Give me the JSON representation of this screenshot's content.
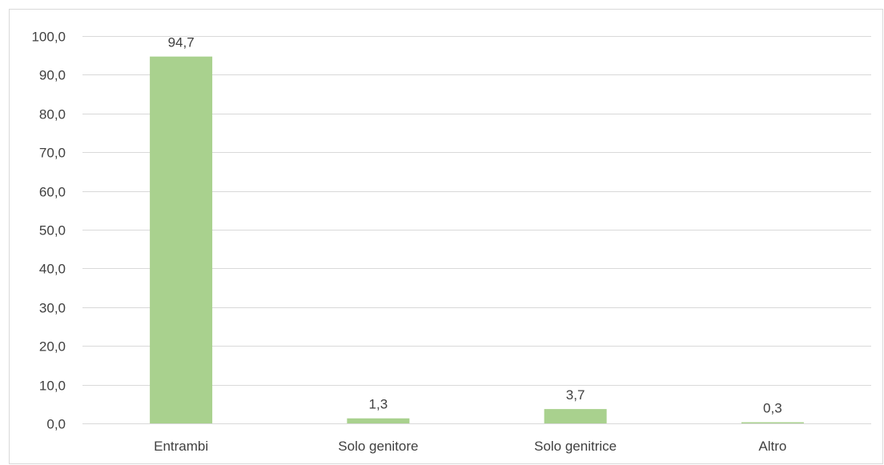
{
  "chart_data": {
    "type": "bar",
    "title": "",
    "xlabel": "",
    "ylabel": "",
    "categories": [
      "Entrambi",
      "Solo genitore",
      "Solo genitrice",
      "Altro"
    ],
    "values": [
      94.7,
      1.3,
      3.7,
      0.3
    ],
    "value_labels": [
      "94,7",
      "1,3",
      "3,7",
      "0,3"
    ],
    "ylim": [
      0,
      100
    ],
    "yticks": [
      0,
      10,
      20,
      30,
      40,
      50,
      60,
      70,
      80,
      90,
      100
    ],
    "ytick_labels": [
      "0,0",
      "10,0",
      "20,0",
      "30,0",
      "40,0",
      "50,0",
      "60,0",
      "70,0",
      "80,0",
      "90,0",
      "100,0"
    ],
    "bar_color": "#a9d18e",
    "grid_color": "#d9d9d9",
    "text_color": "#404040",
    "grid": true,
    "legend": "none"
  }
}
